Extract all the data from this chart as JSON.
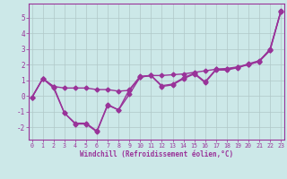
{
  "series1": [
    [
      0,
      -0.1
    ],
    [
      1,
      1.1
    ],
    [
      2,
      0.6
    ],
    [
      3,
      0.5
    ],
    [
      4,
      0.5
    ],
    [
      5,
      0.5
    ],
    [
      6,
      0.4
    ],
    [
      7,
      0.4
    ],
    [
      8,
      0.3
    ],
    [
      9,
      0.35
    ],
    [
      10,
      1.2
    ],
    [
      11,
      1.3
    ],
    [
      12,
      1.3
    ],
    [
      13,
      1.35
    ],
    [
      14,
      1.4
    ],
    [
      15,
      1.5
    ],
    [
      16,
      1.6
    ],
    [
      17,
      1.7
    ],
    [
      18,
      1.75
    ],
    [
      19,
      1.85
    ],
    [
      20,
      2.0
    ],
    [
      21,
      2.2
    ],
    [
      22,
      2.9
    ],
    [
      23,
      5.4
    ]
  ],
  "series2": [
    [
      0,
      -0.1
    ],
    [
      1,
      1.1
    ],
    [
      2,
      0.6
    ],
    [
      3,
      -1.1
    ],
    [
      4,
      -1.8
    ],
    [
      5,
      -1.8
    ],
    [
      6,
      -2.3
    ],
    [
      7,
      -0.6
    ],
    [
      8,
      -0.9
    ],
    [
      9,
      0.1
    ],
    [
      10,
      1.2
    ],
    [
      11,
      1.3
    ],
    [
      12,
      0.6
    ],
    [
      13,
      0.7
    ],
    [
      14,
      1.1
    ],
    [
      15,
      1.4
    ],
    [
      16,
      0.85
    ],
    [
      17,
      1.65
    ],
    [
      18,
      1.65
    ],
    [
      19,
      1.8
    ],
    [
      20,
      2.0
    ],
    [
      21,
      2.2
    ],
    [
      22,
      3.0
    ],
    [
      23,
      5.4
    ]
  ],
  "series3": [
    [
      0,
      -0.1
    ],
    [
      1,
      1.1
    ],
    [
      2,
      0.5
    ],
    [
      3,
      -1.1
    ],
    [
      4,
      -1.75
    ],
    [
      5,
      -1.75
    ],
    [
      6,
      -2.25
    ],
    [
      7,
      -0.55
    ],
    [
      8,
      -0.9
    ],
    [
      9,
      0.4
    ],
    [
      10,
      1.25
    ],
    [
      11,
      1.3
    ],
    [
      12,
      0.65
    ],
    [
      13,
      0.75
    ],
    [
      14,
      1.15
    ],
    [
      15,
      1.45
    ],
    [
      16,
      0.9
    ],
    [
      17,
      1.7
    ],
    [
      18,
      1.7
    ],
    [
      19,
      1.82
    ],
    [
      20,
      2.05
    ],
    [
      21,
      2.25
    ],
    [
      22,
      2.95
    ],
    [
      23,
      5.45
    ]
  ],
  "xlim": [
    -0.3,
    23.3
  ],
  "ylim": [
    -2.8,
    5.9
  ],
  "yticks": [
    -2,
    -1,
    0,
    1,
    2,
    3,
    4,
    5
  ],
  "xticks": [
    0,
    1,
    2,
    3,
    4,
    5,
    6,
    7,
    8,
    9,
    10,
    11,
    12,
    13,
    14,
    15,
    16,
    17,
    18,
    19,
    20,
    21,
    22,
    23
  ],
  "xlabel": "Windchill (Refroidissement éolien,°C)",
  "line_color": "#993399",
  "bg_color": "#cce8e8",
  "grid_color": "#b0c8c8",
  "marker": "D",
  "marker_size": 2.5,
  "line_width": 1.0
}
